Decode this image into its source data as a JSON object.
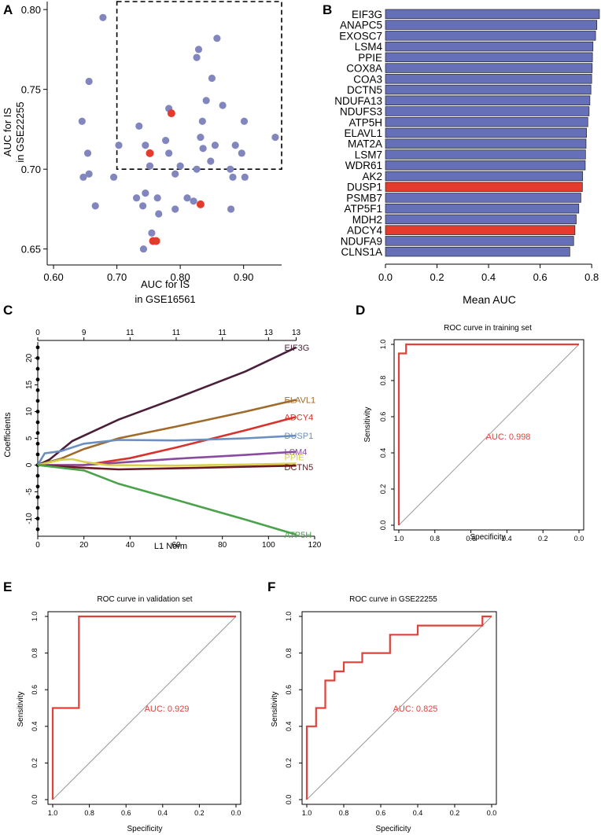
{
  "colors": {
    "point": "#8286bf",
    "highlight": "#e53b2d",
    "bar": "#6670b8",
    "roc": "#e0413a",
    "diag": "#9a9a9a",
    "auc_text": "#e0413a"
  },
  "panel_labels": [
    "A",
    "B",
    "C",
    "D",
    "E",
    "F"
  ],
  "chart_data": [
    {
      "panel": "A",
      "type": "scatter",
      "xlabel_line1": "AUC for IS",
      "xlabel_line2": "in GSE16561",
      "ylabel_line1": "AUC for IS",
      "ylabel_line2": "in GSE22255",
      "xlim": [
        0.59,
        0.96
      ],
      "ylim": [
        0.64,
        0.805
      ],
      "x_ticks": [
        0.6,
        0.7,
        0.8,
        0.9
      ],
      "x_tick_labels": [
        "0.60",
        "0.70",
        "0.80",
        "0.90"
      ],
      "y_ticks": [
        0.65,
        0.7,
        0.75,
        0.8
      ],
      "y_tick_labels": [
        "0.65",
        "0.70",
        "0.75",
        "0.80"
      ],
      "threshold_box": {
        "x_min": 0.7,
        "x_max": 0.96,
        "y_min": 0.7,
        "y_max": 0.805
      },
      "points": [
        [
          0.678,
          0.795
        ],
        [
          0.645,
          0.73
        ],
        [
          0.656,
          0.755
        ],
        [
          0.647,
          0.695
        ],
        [
          0.654,
          0.71
        ],
        [
          0.656,
          0.697
        ],
        [
          0.666,
          0.677
        ],
        [
          0.695,
          0.695
        ],
        [
          0.703,
          0.715
        ],
        [
          0.735,
          0.727
        ],
        [
          0.745,
          0.715
        ],
        [
          0.752,
          0.702
        ],
        [
          0.777,
          0.718
        ],
        [
          0.782,
          0.738
        ],
        [
          0.782,
          0.71
        ],
        [
          0.792,
          0.697
        ],
        [
          0.8,
          0.702
        ],
        [
          0.826,
          0.77
        ],
        [
          0.829,
          0.775
        ],
        [
          0.858,
          0.782
        ],
        [
          0.832,
          0.72
        ],
        [
          0.835,
          0.73
        ],
        [
          0.841,
          0.743
        ],
        [
          0.836,
          0.713
        ],
        [
          0.826,
          0.7
        ],
        [
          0.848,
          0.705
        ],
        [
          0.85,
          0.757
        ],
        [
          0.867,
          0.74
        ],
        [
          0.855,
          0.715
        ],
        [
          0.879,
          0.7
        ],
        [
          0.883,
          0.695
        ],
        [
          0.887,
          0.715
        ],
        [
          0.901,
          0.73
        ],
        [
          0.897,
          0.71
        ],
        [
          0.902,
          0.695
        ],
        [
          0.95,
          0.72
        ],
        [
          0.731,
          0.682
        ],
        [
          0.745,
          0.685
        ],
        [
          0.741,
          0.677
        ],
        [
          0.764,
          0.682
        ],
        [
          0.766,
          0.672
        ],
        [
          0.792,
          0.675
        ],
        [
          0.811,
          0.682
        ],
        [
          0.821,
          0.68
        ],
        [
          0.88,
          0.675
        ],
        [
          0.755,
          0.66
        ],
        [
          0.762,
          0.655
        ],
        [
          0.742,
          0.65
        ]
      ],
      "highlighted_points": [
        [
          0.786,
          0.735
        ],
        [
          0.752,
          0.71
        ],
        [
          0.832,
          0.678
        ],
        [
          0.757,
          0.655
        ],
        [
          0.762,
          0.655
        ]
      ]
    },
    {
      "panel": "B",
      "type": "bar",
      "orientation": "horizontal",
      "xlabel": "Mean AUC",
      "xlim": [
        0,
        0.83
      ],
      "x_ticks": [
        0,
        0.2,
        0.4,
        0.6,
        0.8
      ],
      "x_tick_labels": [
        "0.0",
        "0.2",
        "0.4",
        "0.6",
        "0.8"
      ],
      "categories": [
        "EIF3G",
        "ANAPC5",
        "EXOSC7",
        "LSM4",
        "PPIE",
        "COX8A",
        "COA3",
        "DCTN5",
        "NDUFA13",
        "NDUFS3",
        "ATP5H",
        "ELAVL1",
        "MAT2A",
        "LSM7",
        "WDR61",
        "AK2",
        "DUSP1",
        "PSMB7",
        "ATP5F1",
        "MDH2",
        "ADCY4",
        "NDUFA9",
        "CLNS1A"
      ],
      "values": [
        0.83,
        0.82,
        0.815,
        0.805,
        0.803,
        0.802,
        0.8,
        0.797,
        0.793,
        0.79,
        0.785,
        0.78,
        0.778,
        0.776,
        0.775,
        0.765,
        0.764,
        0.758,
        0.75,
        0.74,
        0.735,
        0.73,
        0.715
      ],
      "highlighted": [
        "DUSP1",
        "ADCY4"
      ]
    },
    {
      "panel": "C",
      "type": "line",
      "xlabel": "L1 Norm",
      "ylabel": "Coefficients",
      "xlim": [
        0,
        120
      ],
      "ylim": [
        -13,
        23
      ],
      "x_ticks": [
        0,
        20,
        40,
        60,
        80,
        100,
        120
      ],
      "x_tick_labels": [
        "0",
        "20",
        "40",
        "60",
        "80",
        "100",
        "120"
      ],
      "y_ticks": [
        -10,
        -5,
        0,
        5,
        10,
        15,
        20
      ],
      "y_tick_labels": [
        "-10",
        "-5",
        "0",
        "5",
        "10",
        "15",
        "20"
      ],
      "top_axis_positions": [
        0,
        20,
        40,
        60,
        80,
        100,
        112
      ],
      "top_axis_labels": [
        "0",
        "9",
        "11",
        "11",
        "11",
        "13",
        "13"
      ],
      "dots_y": [
        22,
        20,
        18,
        16,
        14,
        12,
        10,
        8,
        6,
        4,
        2,
        0,
        -2,
        -4,
        -6,
        -8,
        -10,
        -12
      ],
      "series": [
        {
          "name": "EIF3G",
          "color": "#4a1f3a",
          "x": [
            0,
            5,
            15,
            35,
            60,
            90,
            112
          ],
          "y": [
            0,
            1,
            4.5,
            8.5,
            12.5,
            17.5,
            22
          ]
        },
        {
          "name": "ELAVL1",
          "color": "#a06a2a",
          "x": [
            0,
            10,
            20,
            35,
            60,
            90,
            112
          ],
          "y": [
            0,
            1.2,
            3,
            5,
            7.2,
            10,
            12.2
          ]
        },
        {
          "name": "ADCY4",
          "color": "#d8322d",
          "x": [
            0,
            20,
            40,
            60,
            90,
            112
          ],
          "y": [
            0,
            0,
            1.3,
            3.3,
            6.5,
            9
          ]
        },
        {
          "name": "DUSP1",
          "color": "#6b8fc0",
          "x": [
            0,
            3,
            10,
            20,
            35,
            60,
            90,
            112
          ],
          "y": [
            0,
            2.2,
            2.6,
            4,
            4.7,
            4.6,
            5,
            5.5
          ]
        },
        {
          "name": "LSM4",
          "color": "#8a4aa0",
          "x": [
            0,
            20,
            40,
            60,
            90,
            112
          ],
          "y": [
            0,
            0,
            0.6,
            1.2,
            1.9,
            2.5
          ]
        },
        {
          "name": "PPIE",
          "color": "#d8cf4a",
          "x": [
            0,
            10,
            15,
            20,
            30,
            60,
            90,
            112
          ],
          "y": [
            0,
            1,
            1.1,
            0.6,
            0,
            -0.1,
            0.1,
            0.3
          ]
        },
        {
          "name": "DCTN5",
          "color": "#6a1a20",
          "x": [
            0,
            20,
            35,
            60,
            90,
            112
          ],
          "y": [
            0,
            -0.5,
            -0.8,
            -0.6,
            -0.3,
            -0.1
          ]
        },
        {
          "name": "ATP5H",
          "color": "#4aa24a",
          "x": [
            0,
            20,
            35,
            60,
            90,
            112
          ],
          "y": [
            0,
            -1,
            -3.5,
            -6.5,
            -10.2,
            -13
          ]
        }
      ]
    },
    {
      "panel": "D",
      "type": "line",
      "title": "ROC curve in training set",
      "xlabel": "Specificity",
      "ylabel": "Sensitivity",
      "auc_label": "AUC: 0.998",
      "ticks": [
        1,
        0.8,
        0.6,
        0.4,
        0.2,
        0
      ],
      "tick_labels": [
        "1.0",
        "0.8",
        "0.6",
        "0.4",
        "0.2",
        "0.0"
      ],
      "y_tick_labels": [
        "0.0",
        "0.2",
        "0.4",
        "0.6",
        "0.8",
        "1.0"
      ],
      "specificity": [
        1,
        1,
        0.98,
        0.98,
        0.96,
        0.96,
        0
      ],
      "sensitivity": [
        0,
        0.95,
        0.95,
        0.95,
        0.95,
        1,
        1
      ]
    },
    {
      "panel": "E",
      "type": "line",
      "title": "ROC curve in validation set",
      "xlabel": "Specificity",
      "ylabel": "Sensitivity",
      "auc_label": "AUC: 0.929",
      "ticks": [
        1,
        0.8,
        0.6,
        0.4,
        0.2,
        0
      ],
      "tick_labels": [
        "1.0",
        "0.8",
        "0.6",
        "0.4",
        "0.2",
        "0.0"
      ],
      "y_tick_labels": [
        "0.0",
        "0.2",
        "0.4",
        "0.6",
        "0.8",
        "1.0"
      ],
      "specificity": [
        1,
        1,
        0.857,
        0.857,
        0
      ],
      "sensitivity": [
        0,
        0.5,
        0.5,
        1,
        1
      ]
    },
    {
      "panel": "F",
      "type": "line",
      "title": "ROC curve in GSE22255",
      "xlabel": "Specificity",
      "ylabel": "Sensitivity",
      "auc_label": "AUC: 0.825",
      "ticks": [
        1,
        0.8,
        0.6,
        0.4,
        0.2,
        0
      ],
      "tick_labels": [
        "1.0",
        "0.8",
        "0.6",
        "0.4",
        "0.2",
        "0.0"
      ],
      "y_tick_labels": [
        "0.0",
        "0.2",
        "0.4",
        "0.6",
        "0.8",
        "1.0"
      ],
      "specificity": [
        1,
        1,
        0.95,
        0.95,
        0.9,
        0.9,
        0.85,
        0.85,
        0.8,
        0.8,
        0.7,
        0.7,
        0.55,
        0.55,
        0.4,
        0.4,
        0.05,
        0.05,
        0
      ],
      "sensitivity": [
        0,
        0.4,
        0.4,
        0.5,
        0.5,
        0.65,
        0.65,
        0.7,
        0.7,
        0.75,
        0.75,
        0.8,
        0.8,
        0.9,
        0.9,
        0.95,
        0.95,
        1,
        1
      ]
    }
  ]
}
